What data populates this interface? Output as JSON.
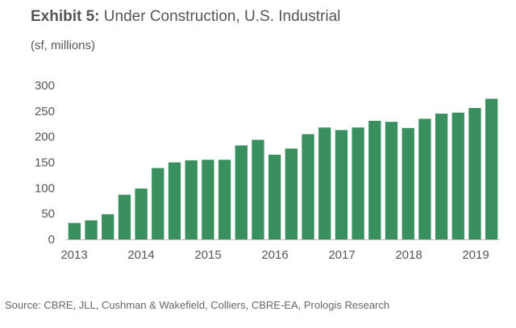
{
  "header": {
    "exhibit_label": "Exhibit 5:",
    "title": "Under Construction, U.S. Industrial",
    "units": "(sf, millions)"
  },
  "footer": {
    "source": "Source: CBRE, JLL, Cushman & Wakefield, Colliers, CBRE-EA, Prologis Research"
  },
  "colors": {
    "bar": "#3a8f5f",
    "axis_text": "#555555",
    "baseline": "#bfbfbf"
  },
  "chart_data": {
    "type": "bar",
    "title": "Exhibit 5: Under Construction, U.S. Industrial",
    "ylabel": "(sf, millions)",
    "xlabel": "",
    "ylim": [
      0,
      300
    ],
    "yticks": [
      0,
      50,
      100,
      150,
      200,
      250,
      300
    ],
    "x_tick_labels": [
      "2013",
      "2014",
      "2015",
      "2016",
      "2017",
      "2018",
      "2019"
    ],
    "categories": [
      "2013 Q1",
      "2013 Q2",
      "2013 Q3",
      "2013 Q4",
      "2014 Q1",
      "2014 Q2",
      "2014 Q3",
      "2014 Q4",
      "2015 Q1",
      "2015 Q2",
      "2015 Q3",
      "2015 Q4",
      "2016 Q1",
      "2016 Q2",
      "2016 Q3",
      "2016 Q4",
      "2017 Q1",
      "2017 Q2",
      "2017 Q3",
      "2017 Q4",
      "2018 Q1",
      "2018 Q2",
      "2018 Q3",
      "2018 Q4",
      "2019 Q1",
      "2019 Q2"
    ],
    "values": [
      32,
      37,
      49,
      87,
      99,
      139,
      150,
      154,
      155,
      155,
      183,
      194,
      165,
      177,
      205,
      218,
      213,
      218,
      231,
      229,
      217,
      235,
      245,
      247,
      256,
      274
    ],
    "grid": false,
    "legend": "none"
  }
}
